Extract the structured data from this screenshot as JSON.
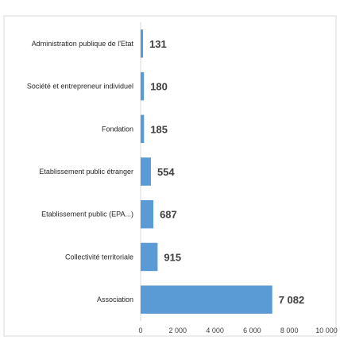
{
  "chart_data": {
    "type": "bar",
    "orientation": "horizontal",
    "categories": [
      "Administration publique de l'Etat",
      "Société et entrepreneur individuel",
      "Fondation",
      "Etablissement public étranger",
      "Etablissement public (EPA...)",
      "Collectivité territoriale",
      "Association"
    ],
    "values": [
      131,
      180,
      185,
      554,
      687,
      915,
      7082
    ],
    "data_labels": [
      "131",
      "180",
      "185",
      "554",
      "687",
      "915",
      "7 082"
    ],
    "xlim": [
      0,
      10000
    ],
    "x_ticks": [
      0,
      2000,
      4000,
      6000,
      8000,
      10000
    ],
    "x_tick_labels": [
      "0",
      "2 000",
      "4 000",
      "6 000",
      "8 000",
      "10 000"
    ],
    "grid": false,
    "bar_color": "#5b9bd5",
    "title": "",
    "xlabel": "",
    "ylabel": ""
  }
}
